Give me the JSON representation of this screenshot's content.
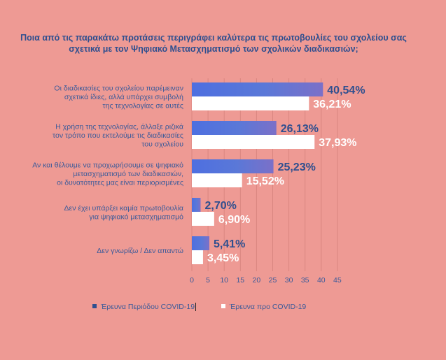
{
  "chart_data": {
    "type": "bar",
    "orientation": "horizontal",
    "title": "Ποια από τις παρακάτω προτάσεις  περιγράφει καλύτερα τις πρωτοβουλίες του σχολείου σας σχετικά με τον Ψηφιακό Μετασχηματισμό των σχολικών διαδικασιών;",
    "categories": [
      [
        "Οι διαδικασίες του σχολείου παρέμειναν",
        "σχετικά ίδιες, αλλά υπάρχει συμβολή",
        "της τεχνολογίας σε αυτές"
      ],
      [
        "Η χρήση της τεχνολογίας, άλλαξε ριζικά",
        "τον τρόπο που εκτελούμε τις διαδικασίες",
        "του σχολείου"
      ],
      [
        "Αν και θέλουμε να προχωρήσουμε σε ψηφιακό",
        "μετασχηματισμό των διαδικασιών,",
        "οι δυνατότητες μας είναι περιορισμένες"
      ],
      [
        "Δεν έχει υπάρξει καμία πρωτοβουλία",
        "για ψηφιακό μετασχηματισμό"
      ],
      [
        "Δεν γνωρίζω / Δεν απαντώ"
      ]
    ],
    "series": [
      {
        "name": "Έρευνα Περιόδου COVID-19",
        "color": "#5673d6",
        "label_color": "#2f4f8f",
        "values": [
          40.54,
          26.13,
          25.23,
          2.7,
          5.41
        ],
        "labels": [
          "40,54%",
          "26,13%",
          "25,23%",
          "2,70%",
          "5,41%"
        ]
      },
      {
        "name": "Έρευνα προ COVID-19",
        "color": "#ffffff",
        "label_color": "#ffffff",
        "values": [
          36.21,
          37.93,
          15.52,
          6.9,
          3.45
        ],
        "labels": [
          "36,21%",
          "37,93%",
          "15,52%",
          "6,90%",
          "3,45%"
        ]
      }
    ],
    "xlim": [
      0,
      45
    ],
    "xticks": [
      "0",
      "5",
      "10",
      "15",
      "20",
      "25",
      "30",
      "35",
      "40",
      "45"
    ],
    "grid": true,
    "legend_position": "bottom"
  }
}
